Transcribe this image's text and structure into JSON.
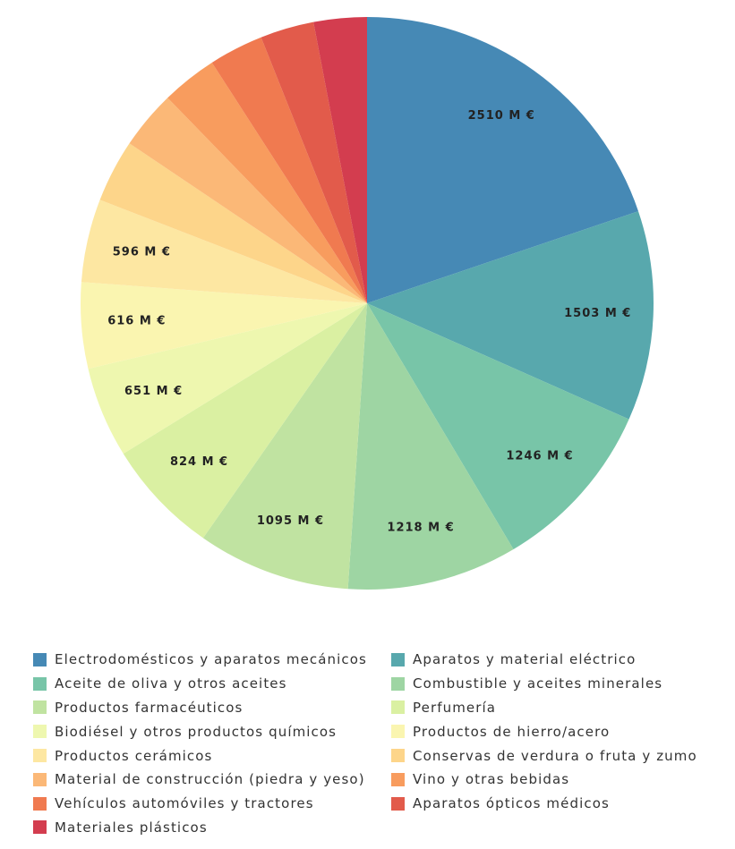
{
  "chart_data": {
    "type": "pie",
    "unit_suffix": " M €",
    "start_angle_deg": 0,
    "direction": "clockwise",
    "slices": [
      {
        "label": "Electrodomésticos y aparatos mecánicos",
        "value": 2510,
        "color": "#4689b5",
        "data_label": "2510 M €"
      },
      {
        "label": "Aparatos y material eléctrico",
        "value": 1503,
        "color": "#58a8ad",
        "data_label": "1503 M €"
      },
      {
        "label": "Aceite de oliva y otros aceites",
        "value": 1246,
        "color": "#78c5a8",
        "data_label": "1246 M €"
      },
      {
        "label": "Combustible y aceites minerales",
        "value": 1218,
        "color": "#9ed5a3",
        "data_label": "1218 M €"
      },
      {
        "label": "Productos farmacéuticos",
        "value": 1095,
        "color": "#c0e3a1",
        "data_label": "1095 M €"
      },
      {
        "label": "Perfumería",
        "value": 824,
        "color": "#daf0a2",
        "data_label": "824 M €"
      },
      {
        "label": "Biodiésel y otros productos químicos",
        "value": 651,
        "color": "#eef7af",
        "data_label": "651 M €"
      },
      {
        "label": "Productos de hierro/acero",
        "value": 616,
        "color": "#faf5b0",
        "data_label": "616 M €"
      },
      {
        "label": "Productos cerámicos",
        "value": 596,
        "color": "#fde7a2",
        "data_label": "596 M €"
      },
      {
        "label": "Conservas de verdura o fruta y zumo",
        "value": 450,
        "color": "#fdd58a",
        "data_label": ""
      },
      {
        "label": "Material de construcción (piedra y yeso)",
        "value": 420,
        "color": "#fbb877",
        "data_label": ""
      },
      {
        "label": "Vino y otras bebidas",
        "value": 400,
        "color": "#f89c5e",
        "data_label": ""
      },
      {
        "label": "Vehículos automóviles y tractores",
        "value": 390,
        "color": "#f07a50",
        "data_label": ""
      },
      {
        "label": "Aparatos ópticos médicos",
        "value": 385,
        "color": "#e25b4b",
        "data_label": ""
      },
      {
        "label": "Materiales plásticos",
        "value": 380,
        "color": "#d33d4f",
        "data_label": ""
      }
    ]
  }
}
